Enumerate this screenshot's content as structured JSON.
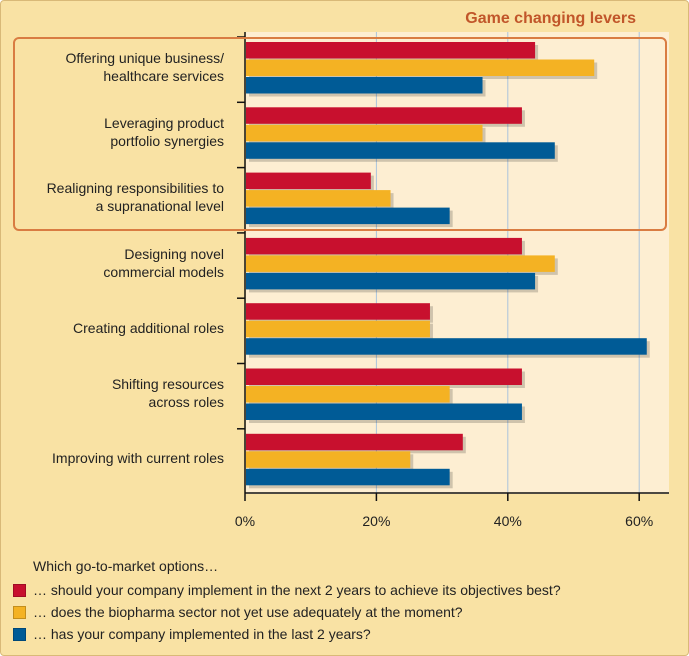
{
  "highlight": {
    "title": "Game changing levers"
  },
  "question": "Which go-to-market options…",
  "legend": [
    {
      "label": "… should your company implement in the next 2 years to achieve its objectives best?",
      "color": "#c8102e"
    },
    {
      "label": "… does the biopharma sector not yet use adequately at the moment?",
      "color": "#f4b223"
    },
    {
      "label": "… has your company implemented in the last 2 years?",
      "color": "#005b96"
    }
  ],
  "chart_data": {
    "type": "bar",
    "orientation": "horizontal",
    "categories": [
      "Offering unique business/\nhealthcare services",
      "Leveraging product\nportfolio synergies",
      "Realigning responsibilities to\na supranational level",
      "Designing novel\ncommercial models",
      "Creating additional roles",
      "Shifting resources\nacross roles",
      "Improving with current roles"
    ],
    "series": [
      {
        "color": "#c8102e",
        "values": [
          44,
          42,
          19,
          42,
          28,
          42,
          33
        ]
      },
      {
        "color": "#f4b223",
        "values": [
          53,
          36,
          22,
          47,
          28,
          31,
          25
        ]
      },
      {
        "color": "#005b96",
        "values": [
          36,
          47,
          31,
          44,
          61,
          42,
          31
        ]
      }
    ],
    "xlim": [
      0,
      65
    ],
    "ticks": [
      "0%",
      "20%",
      "40%",
      "60%"
    ],
    "tick_values": [
      0,
      20,
      40,
      60
    ],
    "grid": true,
    "highlighted_categories": 3
  }
}
